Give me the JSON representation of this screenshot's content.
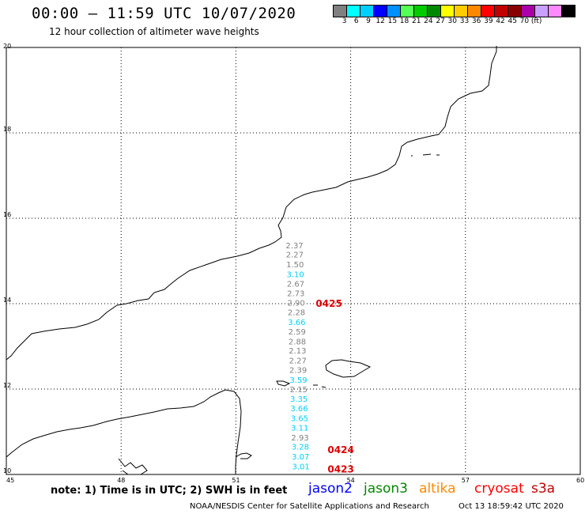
{
  "title": "00:00 – 11:59 UTC 10/07/2020",
  "subtitle": "12 hour collection of altimeter wave heights",
  "colorbar": {
    "colors": [
      "#808080",
      "#00ffff",
      "#00d0ff",
      "#0000ff",
      "#0090ff",
      "#55ff55",
      "#00cc00",
      "#008800",
      "#ffff00",
      "#ffcc00",
      "#ff8800",
      "#ff0000",
      "#c00000",
      "#880000",
      "#aa00aa",
      "#c8a0ff",
      "#ff88ff",
      "#000000"
    ],
    "labels": [
      "3",
      "6",
      "9",
      "12",
      "15",
      "18",
      "21",
      "24",
      "27",
      "30",
      "33",
      "36",
      "39",
      "42",
      "45",
      "70",
      "(ft)"
    ]
  },
  "axes": {
    "x_ticks": [
      "45",
      "48",
      "51",
      "54",
      "57",
      "60"
    ],
    "y_ticks": [
      "20",
      "18",
      "16",
      "14",
      "12",
      "10"
    ]
  },
  "swh_values": [
    {
      "v": "2.37",
      "c": "#808080",
      "lat": 15.3
    },
    {
      "v": "2.27",
      "c": "#808080",
      "lat": 15.08
    },
    {
      "v": "1.50",
      "c": "#808080",
      "lat": 14.85
    },
    {
      "v": "3.10",
      "c": "#00d0ff",
      "lat": 14.62
    },
    {
      "v": "2.67",
      "c": "#808080",
      "lat": 14.4
    },
    {
      "v": "2.73",
      "c": "#808080",
      "lat": 14.18
    },
    {
      "v": "2.90",
      "c": "#808080",
      "lat": 13.95
    },
    {
      "v": "2.28",
      "c": "#808080",
      "lat": 13.73
    },
    {
      "v": "3.66",
      "c": "#00d0ff",
      "lat": 13.5
    },
    {
      "v": "2.59",
      "c": "#808080",
      "lat": 13.28
    },
    {
      "v": "2.88",
      "c": "#808080",
      "lat": 13.05
    },
    {
      "v": "2.13",
      "c": "#808080",
      "lat": 12.83
    },
    {
      "v": "2.27",
      "c": "#808080",
      "lat": 12.6
    },
    {
      "v": "2.39",
      "c": "#808080",
      "lat": 12.38
    },
    {
      "v": "3.59",
      "c": "#00d0ff",
      "lat": 12.15
    },
    {
      "v": "2.15",
      "c": "#808080",
      "lat": 11.93
    },
    {
      "v": "3.35",
      "c": "#00d0ff",
      "lat": 11.7
    },
    {
      "v": "3.66",
      "c": "#00d0ff",
      "lat": 11.48
    },
    {
      "v": "3.65",
      "c": "#00d0ff",
      "lat": 11.25
    },
    {
      "v": "3.11",
      "c": "#00d0ff",
      "lat": 11.03
    },
    {
      "v": "2.93",
      "c": "#808080",
      "lat": 10.8
    },
    {
      "v": "3.28",
      "c": "#00d0ff",
      "lat": 10.58
    },
    {
      "v": "3.07",
      "c": "#00d0ff",
      "lat": 10.35
    },
    {
      "v": "3.01",
      "c": "#00d0ff",
      "lat": 10.12
    }
  ],
  "pass_times": [
    {
      "t": "0425",
      "lat": 13.93
    },
    {
      "t": "0424",
      "lat": 10.5
    },
    {
      "t": "0423",
      "lat": 10.05
    }
  ],
  "note": "note: 1) Time is in UTC; 2) SWH is in feet",
  "satellites": [
    {
      "name": "jason2",
      "color": "#0000ff"
    },
    {
      "name": "jason3",
      "color": "#008800"
    },
    {
      "name": "altika",
      "color": "#ff8800"
    },
    {
      "name": "cryosat",
      "color": "#ff0000"
    },
    {
      "name": "s3a",
      "color": "#c00000"
    }
  ],
  "footer_left": "NOAA/NESDIS Center for Satellite Applications and Research",
  "footer_right": "Oct 13 18:59:42 UTC 2020"
}
